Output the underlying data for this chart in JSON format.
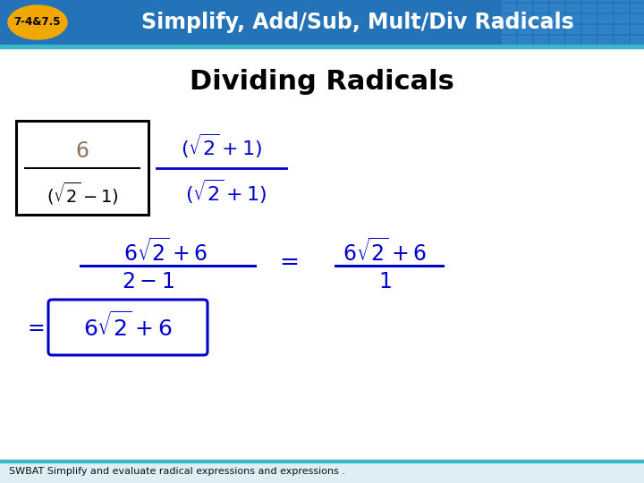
{
  "header_bg_color": "#2472b8",
  "header_text": "Simplify, Add/Sub, Mult/Div Radicals",
  "header_text_color": "#ffffff",
  "badge_color": "#f0a800",
  "badge_text": "7-4&7.5",
  "badge_text_color": "#000000",
  "main_bg_color": "#ffffff",
  "title_text": "Dividing Radicals",
  "title_color": "#000000",
  "blue_color": "#0000cc",
  "black_color": "#000000",
  "footer_text": "SWBAT Simplify and evaluate radical expressions and expressions .",
  "footer_color": "#111111",
  "footer_bg": "#ddeef5",
  "teal_color": "#3ab8c8",
  "grid_color": "#3a8fd0"
}
